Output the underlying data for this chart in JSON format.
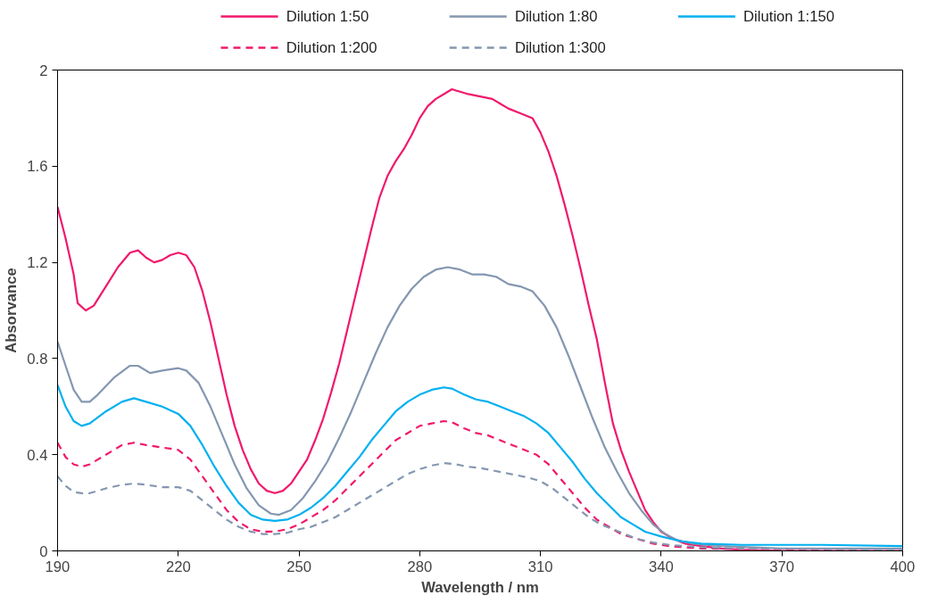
{
  "chart_data": {
    "type": "line",
    "xlabel": "Wavelength / nm",
    "ylabel": "Absorvance",
    "xlim": [
      190,
      400
    ],
    "xticks": [
      190,
      220,
      250,
      280,
      310,
      340,
      370,
      400
    ],
    "ylim": [
      0,
      2
    ],
    "yticks": [
      0,
      0.4,
      0.8,
      1.2,
      1.6,
      2
    ],
    "grid": false,
    "legend": "top",
    "marker": "none",
    "series": [
      {
        "name": "Dilution 1:50",
        "color": "#f0196b",
        "line_style": "solid",
        "x": [
          190,
          192,
          194,
          195,
          197,
          199,
          202,
          205,
          208,
          210,
          212,
          214,
          216,
          218,
          220,
          222,
          224,
          226,
          228,
          230,
          232,
          234,
          236,
          238,
          240,
          242,
          244,
          246,
          248,
          250,
          252,
          254,
          256,
          258,
          260,
          262,
          264,
          266,
          268,
          270,
          272,
          274,
          276,
          278,
          280,
          282,
          284,
          286,
          288,
          290,
          292,
          295,
          298,
          300,
          302,
          305,
          308,
          310,
          312,
          314,
          316,
          318,
          320,
          322,
          324,
          326,
          328,
          330,
          332,
          334,
          336,
          338,
          340,
          343,
          346,
          350,
          355,
          360,
          370,
          400
        ],
        "values": [
          1.43,
          1.3,
          1.15,
          1.03,
          1.0,
          1.02,
          1.1,
          1.18,
          1.24,
          1.25,
          1.22,
          1.2,
          1.21,
          1.23,
          1.24,
          1.23,
          1.18,
          1.08,
          0.95,
          0.8,
          0.65,
          0.52,
          0.42,
          0.34,
          0.28,
          0.25,
          0.24,
          0.25,
          0.28,
          0.33,
          0.38,
          0.46,
          0.55,
          0.66,
          0.78,
          0.92,
          1.06,
          1.2,
          1.34,
          1.47,
          1.56,
          1.62,
          1.67,
          1.73,
          1.8,
          1.85,
          1.88,
          1.9,
          1.92,
          1.91,
          1.9,
          1.89,
          1.88,
          1.86,
          1.84,
          1.82,
          1.8,
          1.74,
          1.66,
          1.56,
          1.44,
          1.31,
          1.17,
          1.02,
          0.88,
          0.7,
          0.53,
          0.42,
          0.33,
          0.25,
          0.17,
          0.12,
          0.08,
          0.05,
          0.03,
          0.02,
          0.01,
          0.005,
          0.0,
          0.0
        ]
      },
      {
        "name": "Dilution 1:80",
        "color": "#8497b0",
        "line_style": "solid",
        "x": [
          190,
          192,
          194,
          196,
          198,
          200,
          204,
          208,
          210,
          213,
          216,
          220,
          222,
          225,
          228,
          231,
          234,
          237,
          240,
          243,
          245,
          248,
          251,
          254,
          257,
          260,
          263,
          266,
          269,
          272,
          275,
          278,
          281,
          284,
          287,
          290,
          293,
          296,
          299,
          302,
          305,
          308,
          311,
          314,
          317,
          320,
          323,
          326,
          329,
          332,
          335,
          338,
          341,
          344,
          348,
          355,
          370,
          400
        ],
        "values": [
          0.87,
          0.77,
          0.67,
          0.62,
          0.62,
          0.65,
          0.72,
          0.77,
          0.77,
          0.74,
          0.75,
          0.76,
          0.75,
          0.7,
          0.6,
          0.48,
          0.36,
          0.26,
          0.19,
          0.155,
          0.15,
          0.17,
          0.22,
          0.29,
          0.37,
          0.47,
          0.58,
          0.7,
          0.82,
          0.93,
          1.02,
          1.09,
          1.14,
          1.17,
          1.18,
          1.17,
          1.15,
          1.15,
          1.14,
          1.11,
          1.1,
          1.08,
          1.02,
          0.93,
          0.81,
          0.68,
          0.55,
          0.43,
          0.33,
          0.24,
          0.17,
          0.11,
          0.07,
          0.045,
          0.03,
          0.02,
          0.01,
          0.01
        ]
      },
      {
        "name": "Dilution 1:150",
        "color": "#00b0f0",
        "line_style": "solid",
        "x": [
          190,
          192,
          194,
          196,
          198,
          202,
          206,
          209,
          212,
          216,
          220,
          223,
          226,
          229,
          232,
          235,
          238,
          241,
          244,
          247,
          250,
          253,
          256,
          259,
          262,
          265,
          268,
          271,
          274,
          277,
          280,
          283,
          286,
          288,
          291,
          294,
          297,
          300,
          303,
          306,
          309,
          312,
          315,
          318,
          321,
          324,
          327,
          330,
          333,
          336,
          340,
          345,
          350,
          360,
          380,
          400
        ],
        "values": [
          0.69,
          0.6,
          0.54,
          0.52,
          0.53,
          0.58,
          0.62,
          0.635,
          0.62,
          0.6,
          0.57,
          0.52,
          0.44,
          0.35,
          0.27,
          0.2,
          0.15,
          0.13,
          0.125,
          0.13,
          0.15,
          0.18,
          0.22,
          0.27,
          0.33,
          0.39,
          0.46,
          0.52,
          0.58,
          0.62,
          0.65,
          0.67,
          0.68,
          0.675,
          0.65,
          0.63,
          0.62,
          0.6,
          0.58,
          0.56,
          0.53,
          0.49,
          0.43,
          0.37,
          0.3,
          0.24,
          0.19,
          0.14,
          0.11,
          0.08,
          0.06,
          0.04,
          0.03,
          0.025,
          0.025,
          0.02
        ]
      },
      {
        "name": "Dilution 1:200",
        "color": "#f0196b",
        "line_style": "dashed",
        "x": [
          190,
          192,
          194,
          196,
          198,
          202,
          206,
          209,
          212,
          216,
          220,
          223,
          226,
          229,
          232,
          235,
          238,
          241,
          244,
          247,
          250,
          253,
          256,
          259,
          262,
          265,
          268,
          271,
          274,
          277,
          280,
          283,
          286,
          288,
          291,
          294,
          297,
          300,
          303,
          306,
          309,
          312,
          315,
          318,
          321,
          324,
          327,
          330,
          334,
          338,
          342,
          350,
          400
        ],
        "values": [
          0.45,
          0.39,
          0.36,
          0.35,
          0.36,
          0.4,
          0.44,
          0.45,
          0.44,
          0.43,
          0.42,
          0.38,
          0.31,
          0.24,
          0.17,
          0.12,
          0.09,
          0.08,
          0.08,
          0.09,
          0.11,
          0.14,
          0.17,
          0.21,
          0.26,
          0.31,
          0.36,
          0.41,
          0.46,
          0.49,
          0.52,
          0.53,
          0.54,
          0.535,
          0.51,
          0.49,
          0.48,
          0.46,
          0.44,
          0.42,
          0.4,
          0.36,
          0.3,
          0.24,
          0.18,
          0.13,
          0.1,
          0.07,
          0.05,
          0.03,
          0.02,
          0.01,
          0.0
        ]
      },
      {
        "name": "Dilution 1:300",
        "color": "#8497b0",
        "line_style": "dashed",
        "x": [
          190,
          192,
          194,
          196,
          198,
          202,
          206,
          209,
          212,
          216,
          220,
          223,
          226,
          229,
          232,
          235,
          238,
          241,
          244,
          247,
          250,
          253,
          256,
          259,
          262,
          265,
          268,
          271,
          274,
          277,
          280,
          283,
          286,
          289,
          292,
          295,
          298,
          301,
          304,
          307,
          310,
          313,
          316,
          319,
          322,
          325,
          328,
          331,
          334,
          338,
          342,
          350,
          360,
          400
        ],
        "values": [
          0.31,
          0.27,
          0.245,
          0.24,
          0.24,
          0.26,
          0.275,
          0.28,
          0.275,
          0.265,
          0.265,
          0.25,
          0.21,
          0.17,
          0.13,
          0.1,
          0.08,
          0.07,
          0.07,
          0.075,
          0.09,
          0.1,
          0.12,
          0.14,
          0.17,
          0.2,
          0.23,
          0.26,
          0.29,
          0.32,
          0.34,
          0.355,
          0.365,
          0.36,
          0.35,
          0.345,
          0.335,
          0.325,
          0.315,
          0.305,
          0.29,
          0.26,
          0.22,
          0.18,
          0.14,
          0.11,
          0.09,
          0.07,
          0.05,
          0.035,
          0.025,
          0.015,
          0.01,
          0.005
        ]
      }
    ]
  }
}
